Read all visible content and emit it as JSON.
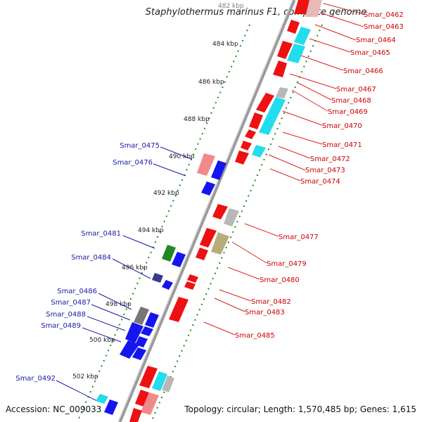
{
  "title": "Staphylothermus marinus F1, complete genome",
  "footer": {
    "accession": "Accession: NC_009033",
    "topology": "Topology: circular; Length: 1,570,485 bp; Genes: 1,615"
  },
  "colors": {
    "red": "#ee1111",
    "pink": "#f08a8a",
    "cyan": "#22dded",
    "grey": "#b8b8b8",
    "olive": "#b8ad7a",
    "blue": "#1515ee",
    "green": "#1f8a1f",
    "navy": "#3a3a8a",
    "darkgrey": "#777777",
    "ruler": "#1e8a1e",
    "backbone": "#909090",
    "right_label": "#cc0000",
    "left_label": "#1a1aa6"
  },
  "kbp_ticks": [
    "482 kbp",
    "484 kbp",
    "486 kbp",
    "488 kbp",
    "490 kbp",
    "492 kbp",
    "494 kbp",
    "496 kbp",
    "498 kbp",
    "500 kbp",
    "502 kbp"
  ],
  "right_labels": [
    "Smar_0462",
    "Smar_0463",
    "Smar_0464",
    "Smar_0465",
    "Smar_0466",
    "Smar_0467",
    "Smar_0468",
    "Smar_0469",
    "Smar_0470",
    "Smar_0471",
    "Smar_0472",
    "Smar_0473",
    "Smar_0474",
    "Smar_0477",
    "Smar_0479",
    "Smar_0480",
    "Smar_0482",
    "Smar_0483",
    "Smar_0485"
  ],
  "left_labels": [
    "Smar_0475",
    "Smar_0476",
    "Smar_0481",
    "Smar_0484",
    "Smar_0486",
    "Smar_0487",
    "Smar_0488",
    "Smar_0489",
    "Smar_0492"
  ]
}
